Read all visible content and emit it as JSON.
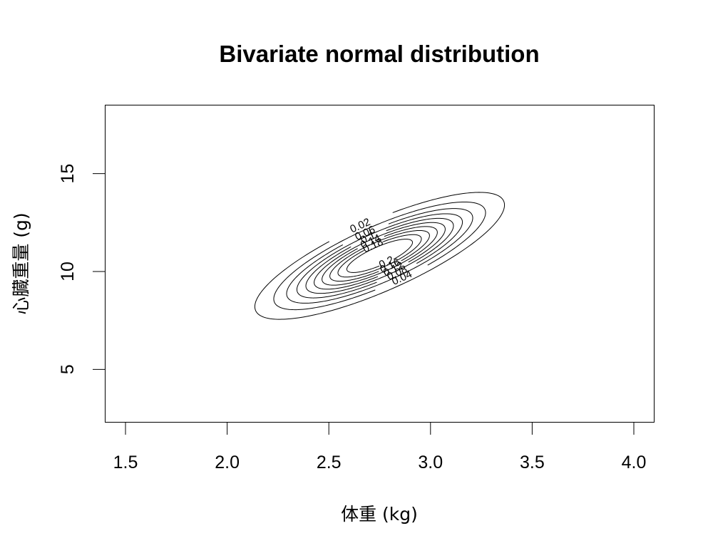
{
  "chart_data": {
    "type": "contour",
    "title": "Bivariate normal distribution",
    "xlabel": "体重 (kg)",
    "ylabel": "心臓重量 (g)",
    "xlim": [
      1.4,
      4.1
    ],
    "ylim": [
      2.3,
      18.5
    ],
    "xticks": [
      1.5,
      2.0,
      2.5,
      3.0,
      3.5,
      4.0
    ],
    "xtick_labels": [
      "1.5",
      "2.0",
      "2.5",
      "3.0",
      "3.5",
      "4.0"
    ],
    "yticks": [
      5,
      10,
      15
    ],
    "ytick_labels": [
      "5",
      "10",
      "15"
    ],
    "distribution": {
      "mean_x": 2.75,
      "mean_y": 10.8,
      "sd_x": 0.46,
      "sd_y": 2.43,
      "rho": 0.8
    },
    "levels": [
      0.02,
      0.04,
      0.06,
      0.08,
      0.1,
      0.12,
      0.14,
      0.16,
      0.18,
      0.2
    ],
    "contour_labels": [
      {
        "text": "0.02",
        "level": 0.02
      },
      {
        "text": "0.04",
        "level": 0.04
      },
      {
        "text": "0.06",
        "level": 0.06
      },
      {
        "text": "0.08",
        "level": 0.08
      },
      {
        "text": "0.1",
        "level": 0.1
      },
      {
        "text": "0.12",
        "level": 0.12
      },
      {
        "text": "0.14",
        "level": 0.14
      },
      {
        "text": "0.16",
        "level": 0.16
      },
      {
        "text": "0.18",
        "level": 0.18
      },
      {
        "text": "0.2",
        "level": 0.2
      }
    ],
    "grid": false,
    "box": true
  }
}
